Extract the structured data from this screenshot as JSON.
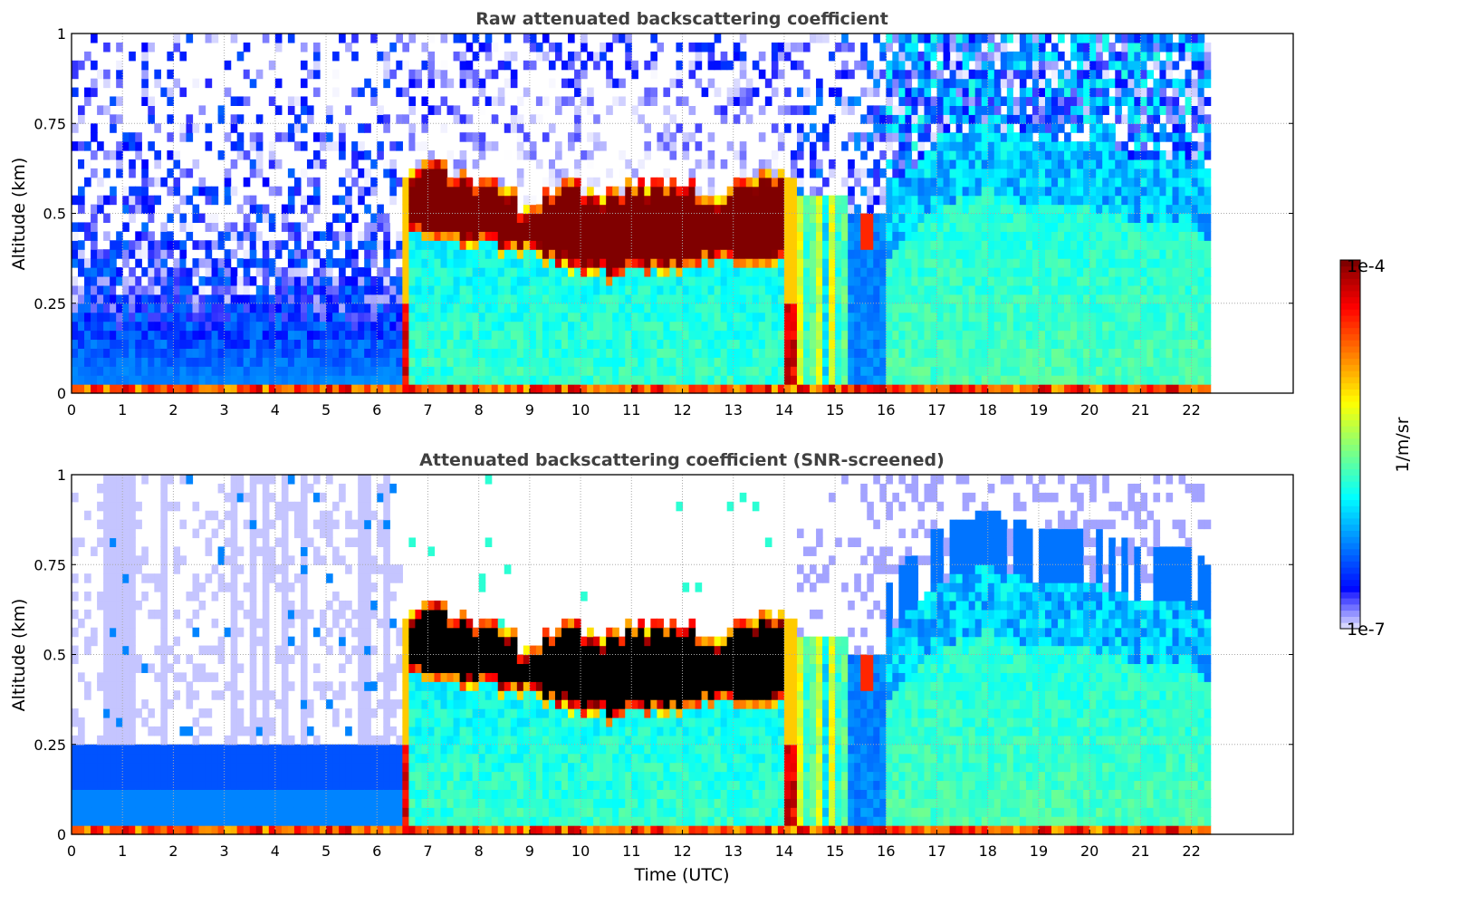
{
  "chart_data": [
    {
      "type": "heatmap",
      "title": "Raw attenuated backscattering coefficient",
      "xlabel": "",
      "ylabel": "Altitude (km)",
      "xlim": [
        0,
        24
      ],
      "ylim": [
        0,
        1
      ],
      "xticks": [
        "0",
        "1",
        "2",
        "3",
        "4",
        "5",
        "6",
        "7",
        "8",
        "9",
        "10",
        "11",
        "12",
        "13",
        "14",
        "15",
        "16",
        "17",
        "18",
        "19",
        "20",
        "21",
        "22"
      ],
      "yticks": [
        "0",
        "0.25",
        "0.5",
        "0.75",
        "1"
      ],
      "screened": false,
      "grid": true
    },
    {
      "type": "heatmap",
      "title": "Attenuated backscattering coefficient (SNR-screened)",
      "xlabel": "Time (UTC)",
      "ylabel": "Altitude (km)",
      "xlim": [
        0,
        24
      ],
      "ylim": [
        0,
        1
      ],
      "xticks": [
        "0",
        "1",
        "2",
        "3",
        "4",
        "5",
        "6",
        "7",
        "8",
        "9",
        "10",
        "11",
        "12",
        "13",
        "14",
        "15",
        "16",
        "17",
        "18",
        "19",
        "20",
        "21",
        "22"
      ],
      "yticks": [
        "0",
        "0.25",
        "0.5",
        "0.75",
        "1"
      ],
      "screened": true,
      "grid": true
    }
  ],
  "field": {
    "data_end_hour": 22.4,
    "cloud_layer_hour_base_top_km": [
      [
        6.6,
        0.47,
        0.58
      ],
      [
        7.0,
        0.42,
        0.65
      ],
      [
        7.5,
        0.41,
        0.62
      ],
      [
        8.0,
        0.42,
        0.59
      ],
      [
        8.5,
        0.4,
        0.58
      ],
      [
        9.0,
        0.4,
        0.5
      ],
      [
        9.5,
        0.36,
        0.59
      ],
      [
        10.0,
        0.34,
        0.58
      ],
      [
        10.5,
        0.32,
        0.55
      ],
      [
        11.0,
        0.33,
        0.58
      ],
      [
        11.5,
        0.34,
        0.6
      ],
      [
        12.0,
        0.35,
        0.6
      ],
      [
        12.5,
        0.36,
        0.56
      ],
      [
        13.0,
        0.36,
        0.58
      ],
      [
        13.5,
        0.35,
        0.6
      ],
      [
        14.05,
        0.35,
        0.6
      ]
    ],
    "precipitation_hours": [
      14.0,
      14.25
    ],
    "boundary_layer_top_hour_km": [
      [
        16,
        0.55
      ],
      [
        17,
        0.7
      ],
      [
        18,
        0.75
      ],
      [
        19,
        0.7
      ],
      [
        20,
        0.7
      ],
      [
        21,
        0.65
      ],
      [
        22,
        0.65
      ],
      [
        22.4,
        0.6
      ]
    ]
  },
  "colorbar": {
    "label": "1/m/sr",
    "min_label": "1e-7",
    "max_label": "1e-4",
    "log10_range": [
      -7,
      -4
    ],
    "colormap": "jet"
  }
}
